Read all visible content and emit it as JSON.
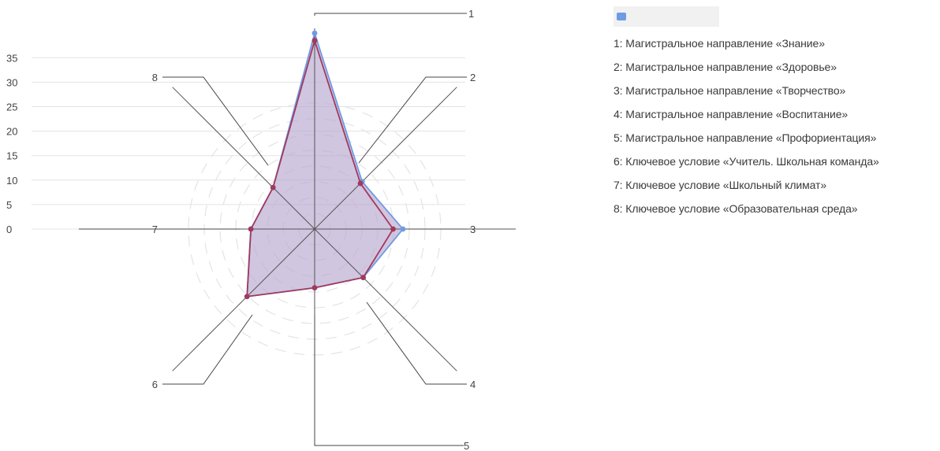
{
  "chart_data": {
    "type": "radar",
    "title": "",
    "y_ticks": [
      "0",
      "5",
      "10",
      "15",
      "20",
      "25",
      "30",
      "35"
    ],
    "ylim": [
      0,
      35
    ],
    "grid": true,
    "legend_position": "right",
    "axes": [
      "1",
      "2",
      "3",
      "4",
      "5",
      "6",
      "7",
      "8"
    ],
    "categories": [
      "1: Магистральное направление «Знание»",
      "2: Магистральное направление «Здоровье»",
      "3: Магистральное направление «Творчество»",
      "4: Магистральное направление «Воспитание»",
      "5: Магистральное направление «Профориентация»",
      "6: Ключевое условие «Учитель. Школьная команда»",
      "7: Ключевое условие «Школьный климат»",
      "8: Ключевое условие «Образовательная среда»"
    ],
    "series": [
      {
        "name": "",
        "color": "#6f9be3",
        "values": [
          40,
          13.7,
          18,
          14,
          12,
          19.5,
          13,
          12
        ]
      },
      {
        "name": "",
        "color": "#a2395f",
        "values": [
          38.5,
          13.2,
          16,
          14,
          12,
          19.5,
          13,
          12
        ]
      }
    ],
    "fill_color": "#b7a8cf"
  },
  "legend": {
    "series_swatch_color": "#6f9be3"
  }
}
